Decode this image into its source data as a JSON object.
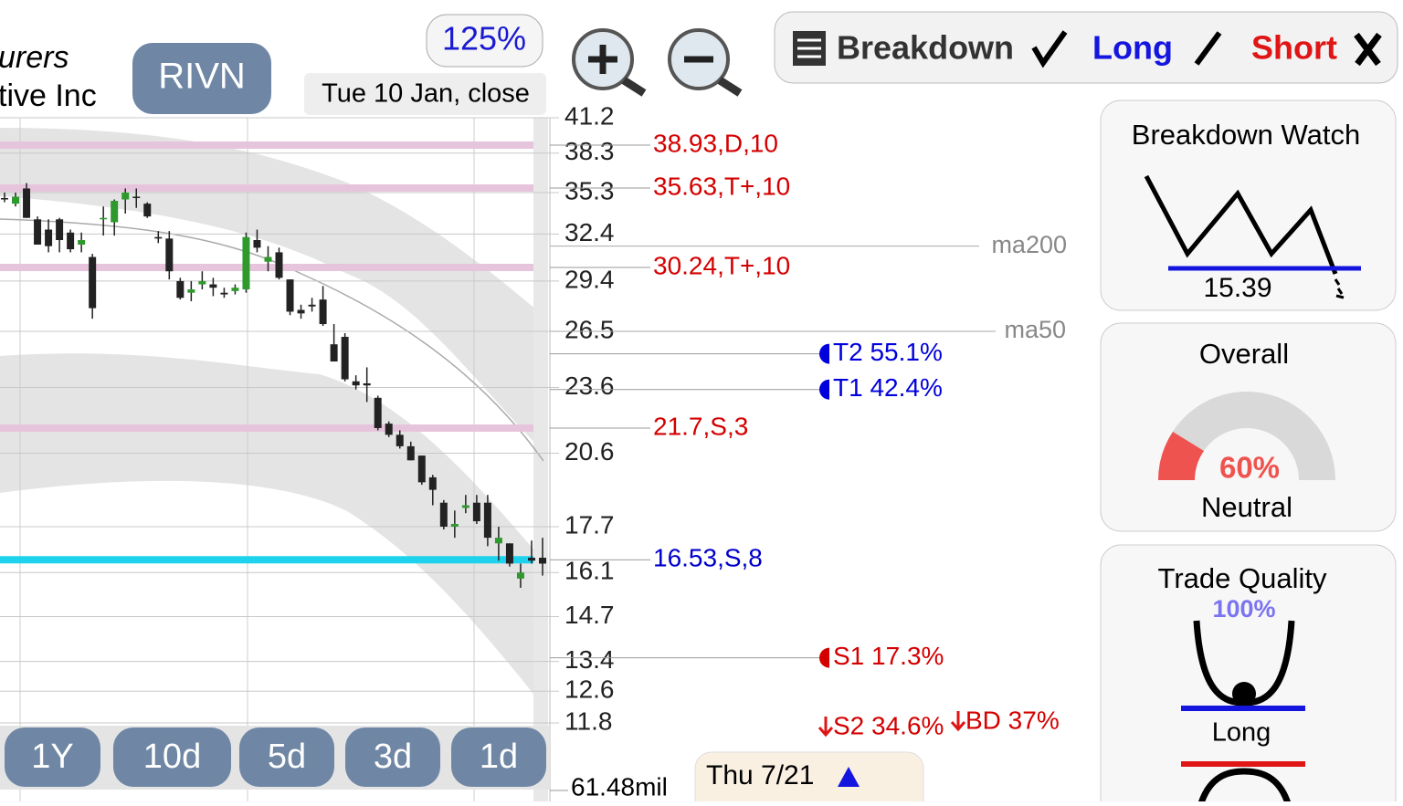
{
  "header": {
    "company_fragments": [
      "urers",
      "tive Inc"
    ],
    "ticker": "RIVN",
    "zoom": "125%",
    "date": "Tue 10 Jan, close",
    "modes": [
      "Breakdown",
      "Long",
      "Short"
    ]
  },
  "chart_data": {
    "type": "candlestick",
    "log_scale": true,
    "ylim": [
      11.8,
      41.2
    ],
    "yticks": [
      41.2,
      38.3,
      35.3,
      32.4,
      29.4,
      26.5,
      23.6,
      20.6,
      17.7,
      16.1,
      14.7,
      13.4,
      12.6,
      11.8
    ],
    "up_color": "#2e9a2e",
    "down_color": "#222222",
    "candles": [
      [
        34.9,
        35.3,
        34.6,
        34.8
      ],
      [
        34.5,
        35.3,
        34.3,
        35.0
      ],
      [
        35.6,
        36.0,
        33.5,
        33.5
      ],
      [
        33.4,
        33.6,
        31.7,
        31.7
      ],
      [
        32.7,
        33.4,
        31.2,
        31.6
      ],
      [
        33.4,
        33.5,
        31.2,
        32.0
      ],
      [
        32.5,
        32.7,
        31.2,
        31.4
      ],
      [
        31.7,
        32.5,
        31.2,
        32.0
      ],
      [
        30.9,
        31.1,
        27.2,
        27.8
      ],
      [
        33.4,
        34.3,
        32.3,
        33.5
      ],
      [
        33.2,
        34.8,
        32.3,
        34.7
      ],
      [
        34.8,
        35.6,
        33.8,
        35.3
      ],
      [
        35.0,
        35.6,
        34.2,
        34.9
      ],
      [
        34.5,
        34.6,
        33.5,
        33.6
      ],
      [
        32.2,
        32.6,
        31.8,
        32.1
      ],
      [
        32.1,
        32.6,
        29.5,
        30.0
      ],
      [
        29.4,
        29.6,
        28.3,
        28.4
      ],
      [
        28.7,
        29.4,
        28.2,
        28.9
      ],
      [
        29.2,
        30.0,
        28.9,
        29.4
      ],
      [
        29.2,
        29.6,
        28.5,
        29.0
      ],
      [
        28.7,
        29.0,
        28.4,
        28.6
      ],
      [
        28.8,
        29.2,
        28.6,
        29.0
      ],
      [
        28.9,
        32.5,
        28.7,
        32.2
      ],
      [
        32.0,
        32.7,
        31.2,
        31.5
      ],
      [
        30.6,
        31.6,
        30.0,
        30.9
      ],
      [
        31.2,
        31.5,
        29.5,
        29.6
      ],
      [
        29.5,
        29.5,
        27.4,
        27.6
      ],
      [
        27.7,
        28.0,
        27.2,
        27.5
      ],
      [
        28.0,
        28.4,
        27.6,
        27.9
      ],
      [
        28.3,
        29.1,
        26.8,
        26.9
      ],
      [
        25.8,
        26.9,
        24.9,
        24.9
      ],
      [
        26.2,
        26.4,
        23.9,
        24.0
      ],
      [
        23.9,
        24.2,
        23.5,
        23.7
      ],
      [
        23.8,
        24.6,
        22.9,
        23.7
      ],
      [
        23.1,
        23.2,
        21.6,
        21.7
      ],
      [
        21.9,
        22.0,
        21.3,
        21.4
      ],
      [
        21.4,
        21.6,
        20.8,
        20.9
      ],
      [
        20.9,
        21.1,
        20.3,
        20.3
      ],
      [
        20.5,
        20.5,
        19.3,
        19.4
      ],
      [
        19.6,
        19.7,
        18.5,
        19.1
      ],
      [
        18.6,
        18.7,
        17.6,
        17.7
      ],
      [
        17.7,
        18.3,
        17.3,
        17.8
      ],
      [
        18.4,
        18.9,
        18.2,
        18.5
      ],
      [
        18.6,
        18.9,
        17.8,
        17.9
      ],
      [
        18.6,
        18.9,
        17.0,
        17.3
      ],
      [
        17.1,
        17.7,
        16.5,
        17.3
      ],
      [
        17.1,
        17.1,
        16.3,
        16.4
      ],
      [
        15.9,
        16.4,
        15.6,
        16.1
      ],
      [
        16.6,
        17.2,
        16.4,
        16.5
      ],
      [
        16.6,
        17.3,
        16.0,
        16.4
      ]
    ],
    "levels": [
      {
        "value": 38.93,
        "label": "38.93,D,10",
        "color": "#d40000"
      },
      {
        "value": 35.63,
        "label": "35.63,T+,10",
        "color": "#d40000"
      },
      {
        "value": 30.24,
        "label": "30.24,T+,10",
        "color": "#d40000"
      },
      {
        "value": 21.7,
        "label": "21.7,S,3",
        "color": "#d40000"
      },
      {
        "value": 16.53,
        "label": "16.53,S,8",
        "color": "#0000cc"
      }
    ],
    "moving_averages": [
      {
        "name": "ma200",
        "value": 31.6
      },
      {
        "name": "ma50",
        "value": 26.5
      }
    ],
    "targets": [
      {
        "value": 25.3,
        "label": "T2 55.1%",
        "color": "#0000dd"
      },
      {
        "value": 23.5,
        "label": "T1 42.4%",
        "color": "#0000dd"
      },
      {
        "value": 13.5,
        "label": "S1 17.3%",
        "color": "#d40000"
      }
    ],
    "stops": [
      "S2 34.6%",
      "BD 37%"
    ],
    "volume_label": "61.48mil"
  },
  "range_buttons": [
    "1Y",
    "10d",
    "5d",
    "3d",
    "1d"
  ],
  "footer": {
    "date": "Thu 7/21"
  },
  "panels": {
    "breakdown_watch": {
      "title": "Breakdown Watch",
      "value": "15.39"
    },
    "overall": {
      "title": "Overall",
      "score": "60%",
      "rating": "Neutral"
    },
    "trade_quality": {
      "title": "Trade Quality",
      "score": "100%",
      "label": "Long"
    }
  }
}
